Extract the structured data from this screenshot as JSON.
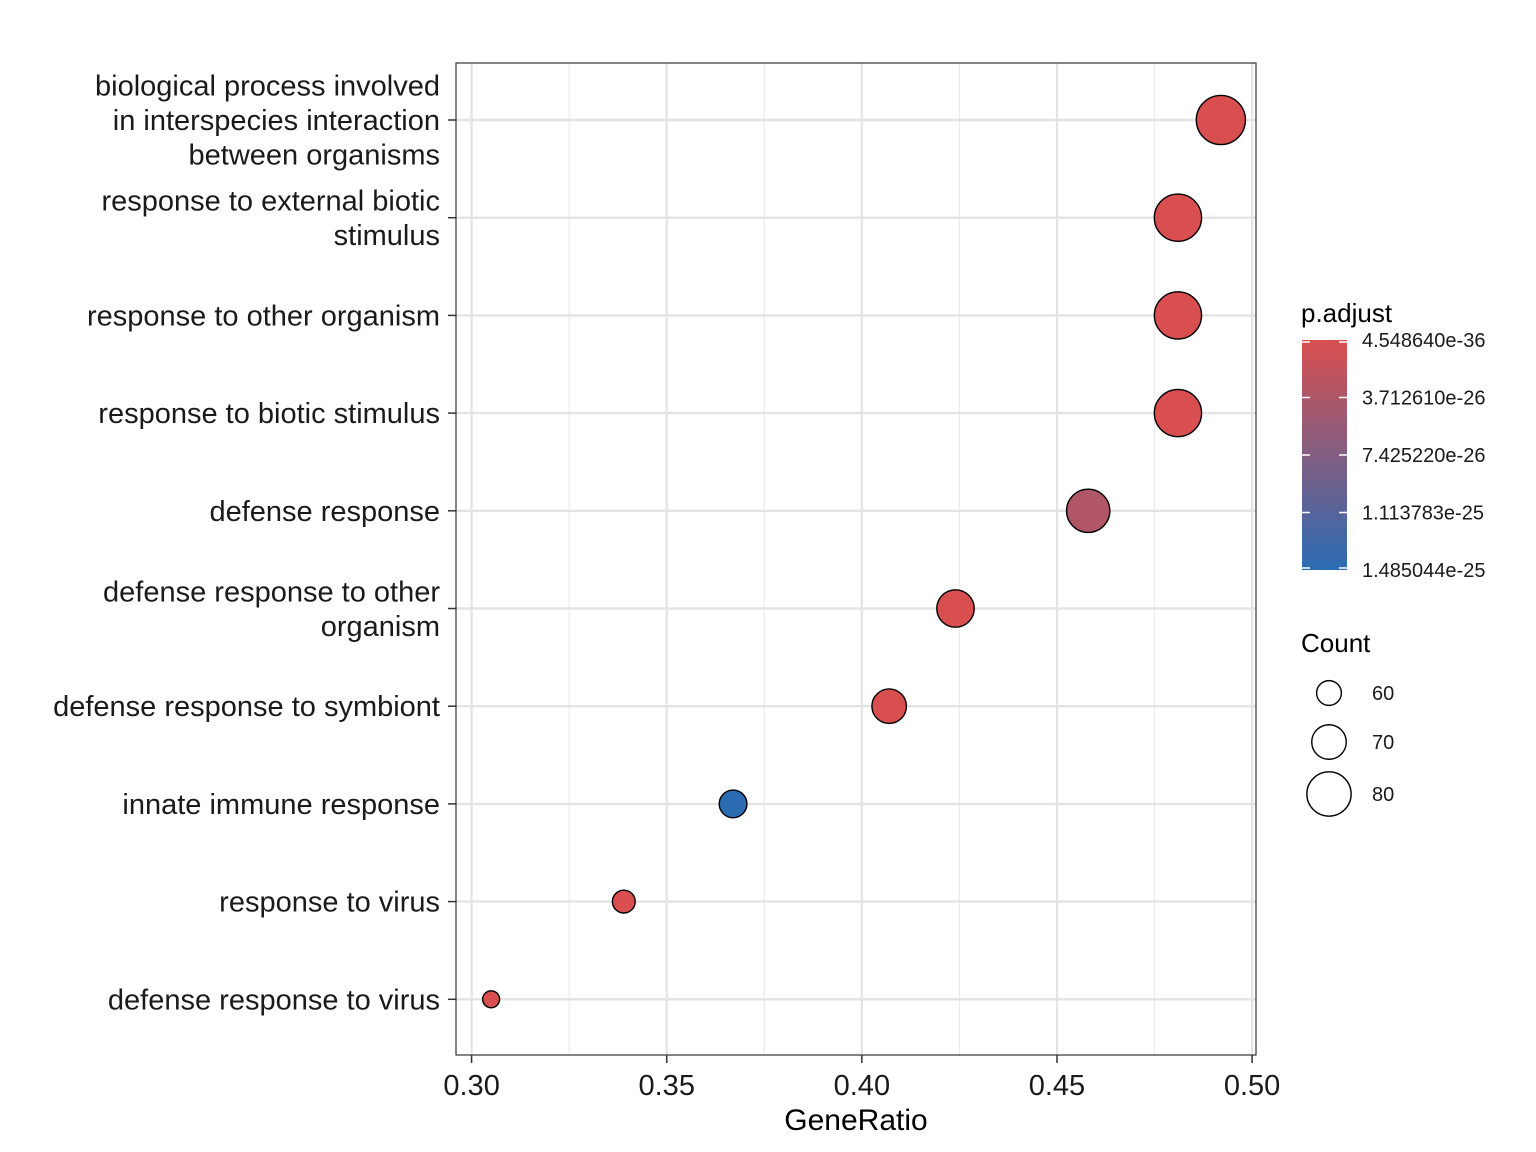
{
  "chart_data": {
    "type": "scatter",
    "xlabel": "GeneRatio",
    "ylabel": "",
    "xlim": [
      0.296,
      0.501
    ],
    "xticks": [
      0.3,
      0.35,
      0.4,
      0.45,
      0.5
    ],
    "xtick_labels": [
      "0.30",
      "0.35",
      "0.40",
      "0.45",
      "0.50"
    ],
    "grid": true,
    "categories": [
      [
        "biological process involved",
        "in interspecies interaction",
        "between organisms"
      ],
      [
        "response to external biotic",
        "stimulus"
      ],
      [
        "response to other organism"
      ],
      [
        "response to biotic stimulus"
      ],
      [
        "defense response"
      ],
      [
        "defense response to other",
        "organism"
      ],
      [
        "defense response to symbiont"
      ],
      [
        "innate immune response"
      ],
      [
        "response to virus"
      ],
      [
        "defense response to virus"
      ]
    ],
    "points": [
      {
        "x": 0.492,
        "count": 85,
        "p_adjust": 4.6e-36
      },
      {
        "x": 0.481,
        "count": 83,
        "p_adjust": 4.6e-36
      },
      {
        "x": 0.481,
        "count": 83,
        "p_adjust": 4.6e-36
      },
      {
        "x": 0.481,
        "count": 83,
        "p_adjust": 4.6e-36
      },
      {
        "x": 0.458,
        "count": 79,
        "p_adjust": 3.5e-26
      },
      {
        "x": 0.424,
        "count": 73,
        "p_adjust": 4.6e-36
      },
      {
        "x": 0.407,
        "count": 70,
        "p_adjust": 4.6e-36
      },
      {
        "x": 0.367,
        "count": 63,
        "p_adjust": 1.485044e-25
      },
      {
        "x": 0.339,
        "count": 58,
        "p_adjust": 4.6e-36
      },
      {
        "x": 0.305,
        "count": 52,
        "p_adjust": 4.6e-36
      }
    ],
    "color_legend": {
      "title": "p.adjust",
      "low_color": "#D94F4F",
      "high_color": "#2B6CB3",
      "labels": [
        "4.548640e-36",
        "3.712610e-26",
        "7.425220e-26",
        "1.113783e-25",
        "1.485044e-25"
      ],
      "values": [
        4.54864e-36,
        3.71261e-26,
        7.42522e-26,
        1.113783e-25,
        1.485044e-25
      ],
      "range": [
        4.54864e-36,
        1.485044e-25
      ]
    },
    "size_legend": {
      "title": "Count",
      "values": [
        60,
        70,
        80
      ],
      "labels": [
        "60",
        "70",
        "80"
      ]
    },
    "legend_position": "right"
  }
}
